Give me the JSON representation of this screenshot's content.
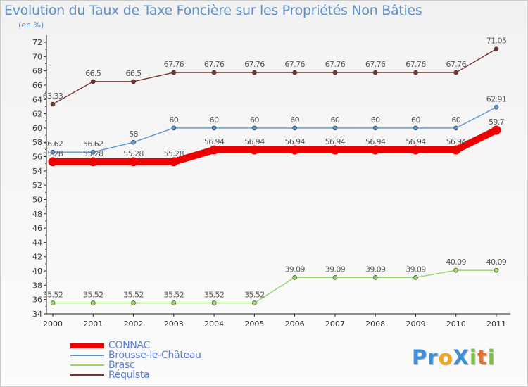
{
  "title": "Evolution du Taux de Taxe Foncière sur les Propriétés Non Bâties",
  "unit_label": "(en %)",
  "logo": {
    "text": "ProXiti",
    "letters": [
      {
        "ch": "P",
        "color": "#3e8fd6"
      },
      {
        "ch": "r",
        "color": "#3e8fd6"
      },
      {
        "ch": "o",
        "color": "#f0a51e"
      },
      {
        "ch": "X",
        "color": "#3e8fd6"
      },
      {
        "ch": "i",
        "color": "#7cc242"
      },
      {
        "ch": "t",
        "color": "#e8702a"
      },
      {
        "ch": "i",
        "color": "#7cc242"
      }
    ]
  },
  "chart_data": {
    "type": "line",
    "title": "Evolution du Taux de Taxe Foncière sur les Propriétés Non Bâties",
    "ylabel": "(en %)",
    "xlabel": "",
    "ylim": [
      34,
      72
    ],
    "ytick_step": 2,
    "grid": false,
    "categories": [
      "2000",
      "2001",
      "2002",
      "2003",
      "2004",
      "2005",
      "2006",
      "2007",
      "2008",
      "2009",
      "2010",
      "2011"
    ],
    "series": [
      {
        "name": "CONNAC",
        "color": "#ee0000",
        "emphasis": true,
        "values": [
          55.28,
          55.28,
          55.28,
          55.28,
          56.94,
          56.94,
          56.94,
          56.94,
          56.94,
          56.94,
          56.94,
          59.7
        ],
        "labels": [
          "55.28",
          "55.28",
          "55.28",
          "55.28",
          "56.94",
          "56.94",
          "56.94",
          "56.94",
          "56.94",
          "56.94",
          "56.94",
          "59.7"
        ]
      },
      {
        "name": "Brousse-le-Château",
        "color": "#5a96d2",
        "emphasis": false,
        "values": [
          56.62,
          56.62,
          58,
          60,
          60,
          60,
          60,
          60,
          60,
          60,
          60,
          62.91
        ],
        "labels": [
          "56.62",
          "56.62",
          "58",
          "60",
          "60",
          "60",
          "60",
          "60",
          "60",
          "60",
          "60",
          "62.91"
        ]
      },
      {
        "name": "Brasc",
        "color": "#9ad36a",
        "emphasis": false,
        "values": [
          35.52,
          35.52,
          35.52,
          35.52,
          35.52,
          35.52,
          39.09,
          39.09,
          39.09,
          39.09,
          40.09,
          40.09
        ],
        "labels": [
          "35.52",
          "35.52",
          "35.52",
          "35.52",
          "35.52",
          "35.52",
          "39.09",
          "39.09",
          "39.09",
          "39.09",
          "40.09",
          "40.09"
        ]
      },
      {
        "name": "Réquista",
        "color": "#7a3432",
        "emphasis": false,
        "values": [
          63.33,
          66.5,
          66.5,
          67.76,
          67.76,
          67.76,
          67.76,
          67.76,
          67.76,
          67.76,
          67.76,
          71.05
        ],
        "labels": [
          "63.33",
          "66.5",
          "66.5",
          "67.76",
          "67.76",
          "67.76",
          "67.76",
          "67.76",
          "67.76",
          "67.76",
          "67.76",
          "71.05"
        ]
      }
    ]
  }
}
